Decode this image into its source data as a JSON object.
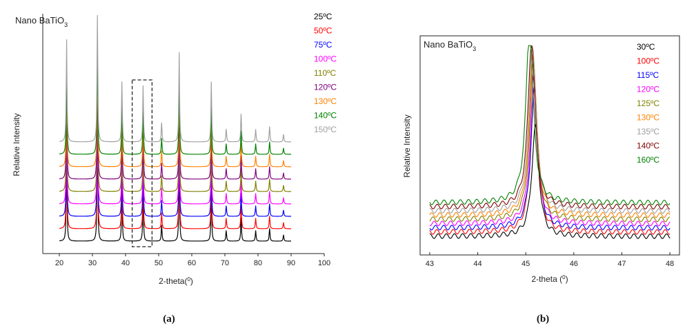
{
  "figure": {
    "caption_a": "(a)",
    "caption_b": "(b)"
  },
  "chart_data": [
    {
      "type": "line",
      "panel": "a",
      "title_main": "Nano BaTiO",
      "title_sub": "3",
      "xlabel_main": "2-theta(",
      "xlabel_sup": "0",
      "xlabel_end": ")",
      "ylabel": "Relative Intensity",
      "xlim": [
        15,
        100
      ],
      "x_ticks": [
        20,
        30,
        40,
        50,
        60,
        70,
        80,
        90,
        100
      ],
      "y_ticks_shown": false,
      "stacked": true,
      "series": [
        {
          "name": "25ºC",
          "color": "#000000"
        },
        {
          "name": "50ºC",
          "color": "#ff0000"
        },
        {
          "name": "75ºC",
          "color": "#0000ff"
        },
        {
          "name": "100ºC",
          "color": "#ff00ff"
        },
        {
          "name": "110ºC",
          "color": "#808000"
        },
        {
          "name": "120ºC",
          "color": "#800080"
        },
        {
          "name": "130ºC",
          "color": "#ff8000"
        },
        {
          "name": "140ºC",
          "color": "#008000"
        },
        {
          "name": "150ºC",
          "color": "#a0a0a0"
        }
      ],
      "peaks": [
        {
          "x": 22.2,
          "h": 0.8
        },
        {
          "x": 31.5,
          "h": 1.0
        },
        {
          "x": 38.9,
          "h": 0.47
        },
        {
          "x": 45.3,
          "h": 0.44
        },
        {
          "x": 50.9,
          "h": 0.15
        },
        {
          "x": 56.2,
          "h": 0.7
        },
        {
          "x": 65.9,
          "h": 0.47
        },
        {
          "x": 70.4,
          "h": 0.1
        },
        {
          "x": 74.9,
          "h": 0.22
        },
        {
          "x": 79.3,
          "h": 0.1
        },
        {
          "x": 83.5,
          "h": 0.12
        },
        {
          "x": 87.7,
          "h": 0.06
        }
      ],
      "highlight_box": {
        "x": [
          42,
          48
        ]
      }
    },
    {
      "type": "line",
      "panel": "b",
      "title_main": "Nano BaTiO",
      "title_sub": "3",
      "xlabel_main": "2-theta (",
      "xlabel_sup": "0",
      "xlabel_end": ")",
      "ylabel": "Relative Intensity",
      "xlim": [
        42.8,
        48.2
      ],
      "x_ticks": [
        43,
        44,
        45,
        46,
        47,
        48
      ],
      "y_ticks_shown": false,
      "stacked": true,
      "series": [
        {
          "name": "30ºC",
          "color": "#000000",
          "center": 45.2,
          "peak": 0.55
        },
        {
          "name": "100ºC",
          "color": "#ff0000",
          "center": 45.18,
          "peak": 0.72
        },
        {
          "name": "115ºC",
          "color": "#0000ff",
          "center": 45.18,
          "peak": 0.7
        },
        {
          "name": "120ºC",
          "color": "#ff00ff",
          "center": 45.17,
          "peak": 0.74
        },
        {
          "name": "125ºC",
          "color": "#808000",
          "center": 45.16,
          "peak": 0.8
        },
        {
          "name": "130ºC",
          "color": "#ff8000",
          "center": 45.15,
          "peak": 0.82
        },
        {
          "name": "135ºC",
          "color": "#a0a0a0",
          "center": 45.14,
          "peak": 0.84
        },
        {
          "name": "140ºC",
          "color": "#800000",
          "center": 45.12,
          "peak": 0.83
        },
        {
          "name": "160ºC",
          "color": "#008000",
          "center": 45.08,
          "peak": 0.9
        }
      ]
    }
  ]
}
